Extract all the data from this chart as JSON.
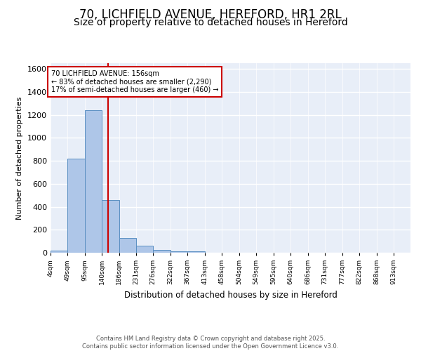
{
  "title1": "70, LICHFIELD AVENUE, HEREFORD, HR1 2RL",
  "title2": "Size of property relative to detached houses in Hereford",
  "xlabel": "Distribution of detached houses by size in Hereford",
  "ylabel": "Number of detached properties",
  "bin_labels": [
    "4sqm",
    "49sqm",
    "95sqm",
    "140sqm",
    "186sqm",
    "231sqm",
    "276sqm",
    "322sqm",
    "367sqm",
    "413sqm",
    "458sqm",
    "504sqm",
    "549sqm",
    "595sqm",
    "640sqm",
    "686sqm",
    "731sqm",
    "777sqm",
    "822sqm",
    "868sqm",
    "913sqm"
  ],
  "bin_edges": [
    4,
    49,
    95,
    140,
    186,
    231,
    276,
    322,
    367,
    413,
    458,
    504,
    549,
    595,
    640,
    686,
    731,
    777,
    822,
    868,
    913,
    958
  ],
  "bar_heights": [
    20,
    820,
    1240,
    460,
    130,
    60,
    25,
    15,
    15,
    0,
    0,
    0,
    0,
    0,
    0,
    0,
    0,
    0,
    0,
    0,
    0
  ],
  "bar_color": "#aec6e8",
  "bar_edge_color": "#5a8fc2",
  "bg_color": "#e8eef8",
  "grid_color": "#ffffff",
  "property_value": 156,
  "vline_color": "#cc0000",
  "annotation_text": "70 LICHFIELD AVENUE: 156sqm\n← 83% of detached houses are smaller (2,290)\n17% of semi-detached houses are larger (460) →",
  "annotation_box_color": "#cc0000",
  "annotation_text_color": "#000000",
  "ylim": [
    0,
    1650
  ],
  "yticks": [
    0,
    200,
    400,
    600,
    800,
    1000,
    1200,
    1400,
    1600
  ],
  "footer_text": "Contains HM Land Registry data © Crown copyright and database right 2025.\nContains public sector information licensed under the Open Government Licence v3.0.",
  "title1_fontsize": 12,
  "title2_fontsize": 10
}
